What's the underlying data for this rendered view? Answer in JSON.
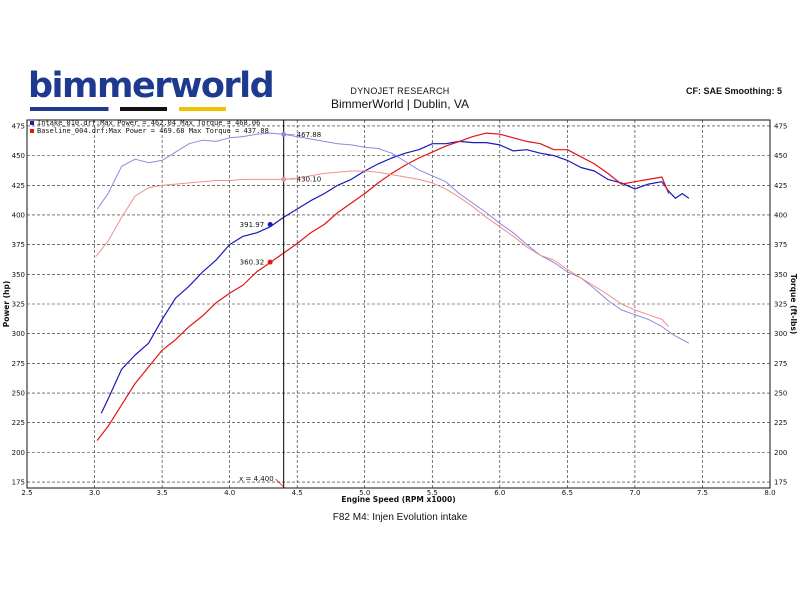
{
  "header": {
    "logo_text": "bimmerworld",
    "org": "DYNOJET RESEARCH",
    "title": "BimmerWorld | Dublin, VA",
    "cf": "CF: SAE  Smoothing: 5"
  },
  "caption": "F82 M4: Injen Evolution intake",
  "colors": {
    "intake_dark": "#1a1ab4",
    "intake_light": "#8a8ae0",
    "baseline_dark": "#e01515",
    "baseline_light": "#ef8f8f",
    "grid": "#222222",
    "cursor": "#000000"
  },
  "chart_data": {
    "type": "line",
    "xlabel": "Engine Speed (RPM x1000)",
    "ylabel_left": "Power (hp)",
    "ylabel_right": "Torque (ft-lbs)",
    "xlim": [
      2.5,
      8.0
    ],
    "ylim": [
      170,
      480
    ],
    "x_ticks": [
      "2.5",
      "3.0",
      "3.5",
      "4.0",
      "4.5",
      "5.0",
      "5.5",
      "6.0",
      "6.5",
      "7.0",
      "7.5",
      "8.0"
    ],
    "y_ticks": [
      175,
      200,
      225,
      250,
      275,
      300,
      325,
      350,
      375,
      400,
      425,
      450,
      475
    ],
    "legend": [
      {
        "label": "Intake_010.drf:Max Power = 462.04   Max Torque = 468.06",
        "color": "#1a1ab4"
      },
      {
        "label": "Baseline_004.drf:Max Power = 469.68   Max Torque = 437.88",
        "color": "#e01515"
      }
    ],
    "cursor": {
      "x": 4.4,
      "label": "x = 4.400"
    },
    "annotations": [
      {
        "text": "467.88",
        "x": 4.4,
        "y": 467.9,
        "color": "#8a8ae0",
        "side": "right"
      },
      {
        "text": "430.10",
        "x": 4.4,
        "y": 430.1,
        "color": "#ef8f8f",
        "side": "right"
      },
      {
        "text": "391.97",
        "x": 4.3,
        "y": 392.0,
        "color": "#1a1ab4",
        "side": "left"
      },
      {
        "text": "360.32",
        "x": 4.3,
        "y": 360.3,
        "color": "#e01515",
        "side": "left"
      }
    ],
    "series": [
      {
        "name": "Intake_010.drf Power",
        "color": "#1a1ab4",
        "width": 1.2,
        "x": [
          3.05,
          3.1,
          3.2,
          3.3,
          3.4,
          3.5,
          3.6,
          3.7,
          3.8,
          3.9,
          4.0,
          4.1,
          4.2,
          4.3,
          4.4,
          4.5,
          4.6,
          4.7,
          4.8,
          4.9,
          5.0,
          5.1,
          5.2,
          5.3,
          5.4,
          5.5,
          5.6,
          5.7,
          5.8,
          5.9,
          6.0,
          6.1,
          6.2,
          6.3,
          6.4,
          6.5,
          6.6,
          6.7,
          6.8,
          6.9,
          7.0,
          7.1,
          7.2,
          7.25,
          7.3,
          7.35,
          7.4
        ],
        "y": [
          233,
          245,
          270,
          282,
          292,
          312,
          330,
          340,
          352,
          362,
          375,
          382,
          385,
          390,
          398,
          405,
          412,
          418,
          425,
          430,
          437,
          443,
          448,
          452,
          455,
          460,
          460,
          462,
          461,
          461,
          459,
          454,
          455,
          452,
          450,
          446,
          440,
          437,
          430,
          427,
          422,
          426,
          428,
          420,
          414,
          418,
          414
        ]
      },
      {
        "name": "Baseline_004.drf Power",
        "color": "#e01515",
        "width": 1.2,
        "x": [
          3.02,
          3.1,
          3.2,
          3.3,
          3.4,
          3.5,
          3.6,
          3.7,
          3.8,
          3.9,
          4.0,
          4.1,
          4.2,
          4.3,
          4.4,
          4.5,
          4.6,
          4.7,
          4.8,
          4.9,
          5.0,
          5.1,
          5.2,
          5.3,
          5.4,
          5.5,
          5.6,
          5.7,
          5.8,
          5.9,
          6.0,
          6.1,
          6.2,
          6.3,
          6.4,
          6.5,
          6.6,
          6.7,
          6.8,
          6.9,
          7.0,
          7.1,
          7.2,
          7.25
        ],
        "y": [
          210,
          222,
          240,
          258,
          272,
          286,
          295,
          306,
          315,
          326,
          334,
          341,
          352,
          360,
          368,
          376,
          385,
          392,
          402,
          410,
          418,
          427,
          435,
          442,
          448,
          453,
          458,
          462,
          466,
          469,
          468,
          465,
          462,
          460,
          455,
          455,
          449,
          443,
          435,
          426,
          428,
          430,
          432,
          418
        ]
      },
      {
        "name": "Intake_010.drf Torque",
        "color": "#8a8ae0",
        "width": 1.0,
        "x": [
          3.02,
          3.1,
          3.2,
          3.3,
          3.4,
          3.5,
          3.6,
          3.7,
          3.8,
          3.9,
          4.0,
          4.1,
          4.2,
          4.3,
          4.4,
          4.5,
          4.6,
          4.7,
          4.8,
          4.9,
          5.0,
          5.1,
          5.2,
          5.3,
          5.4,
          5.5,
          5.6,
          5.7,
          5.8,
          5.9,
          6.0,
          6.1,
          6.2,
          6.3,
          6.4,
          6.5,
          6.6,
          6.7,
          6.8,
          6.9,
          7.0,
          7.1,
          7.2,
          7.3,
          7.4
        ],
        "y": [
          405,
          418,
          441,
          447,
          444,
          446,
          453,
          460,
          463,
          462,
          465,
          466,
          468,
          469,
          468,
          466,
          464,
          462,
          460,
          459,
          457,
          456,
          452,
          445,
          438,
          433,
          428,
          418,
          410,
          402,
          393,
          385,
          375,
          366,
          360,
          352,
          347,
          338,
          328,
          320,
          316,
          312,
          306,
          298,
          292
        ]
      },
      {
        "name": "Baseline_004.drf Torque",
        "color": "#ef8f8f",
        "width": 1.0,
        "x": [
          3.01,
          3.1,
          3.2,
          3.3,
          3.4,
          3.5,
          3.6,
          3.7,
          3.8,
          3.9,
          4.0,
          4.1,
          4.2,
          4.3,
          4.4,
          4.5,
          4.6,
          4.7,
          4.8,
          4.9,
          5.0,
          5.1,
          5.2,
          5.3,
          5.4,
          5.5,
          5.6,
          5.7,
          5.8,
          5.9,
          6.0,
          6.1,
          6.2,
          6.3,
          6.4,
          6.5,
          6.6,
          6.7,
          6.8,
          6.9,
          7.0,
          7.1,
          7.2,
          7.25
        ],
        "y": [
          365,
          378,
          398,
          416,
          423,
          425,
          426,
          427,
          428,
          429,
          429,
          430,
          430,
          430,
          430,
          431,
          433,
          435,
          436,
          437,
          437,
          436,
          434,
          432,
          430,
          427,
          422,
          415,
          407,
          398,
          390,
          382,
          373,
          366,
          362,
          354,
          347,
          340,
          333,
          325,
          320,
          316,
          312,
          306
        ]
      }
    ]
  }
}
